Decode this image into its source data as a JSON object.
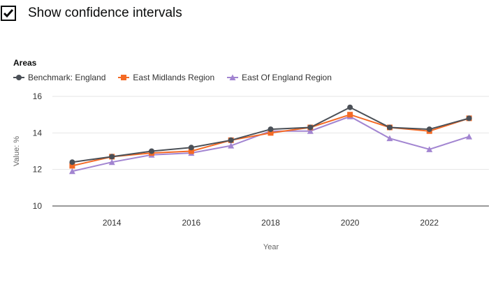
{
  "ci_toggle": {
    "label": "Show confidence intervals",
    "checked": true
  },
  "legend": {
    "title": "Areas",
    "items": [
      {
        "name": "Benchmark: England",
        "color": "#4b5057",
        "marker": "circle"
      },
      {
        "name": "East Midlands Region",
        "color": "#f46a25",
        "marker": "square"
      },
      {
        "name": "East Of England Region",
        "color": "#a285d1",
        "marker": "triangle"
      }
    ]
  },
  "chart_data": {
    "type": "line",
    "x": [
      2013,
      2014,
      2015,
      2016,
      2017,
      2018,
      2019,
      2020,
      2021,
      2022,
      2023
    ],
    "series": [
      {
        "name": "Benchmark: England",
        "values": [
          12.4,
          12.7,
          13.0,
          13.2,
          13.6,
          14.2,
          14.3,
          15.4,
          14.3,
          14.2,
          14.8
        ]
      },
      {
        "name": "East Midlands Region",
        "values": [
          12.2,
          12.7,
          12.9,
          13.0,
          13.6,
          14.0,
          14.3,
          15.0,
          14.3,
          14.1,
          14.8
        ]
      },
      {
        "name": "East Of England Region",
        "values": [
          11.9,
          12.4,
          12.8,
          12.9,
          13.3,
          14.1,
          14.1,
          14.9,
          13.7,
          13.1,
          13.8
        ]
      }
    ],
    "xticks": [
      "2014",
      "2016",
      "2018",
      "2020",
      "2022"
    ],
    "yticks": [
      "10",
      "12",
      "14",
      "16"
    ],
    "xlabel": "Year",
    "ylabel": "Value: %",
    "ylim": [
      10,
      16
    ],
    "xlim": [
      2012.5,
      2023.5
    ],
    "grid": true,
    "legend_position": "top-left"
  }
}
